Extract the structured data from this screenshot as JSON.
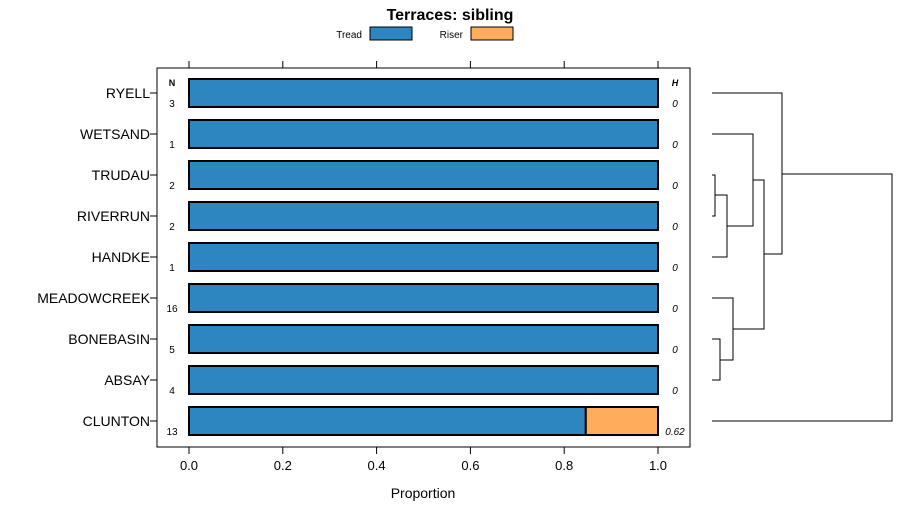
{
  "chart_data": {
    "type": "bar",
    "stacked": true,
    "orientation": "horizontal",
    "title": "Terraces: sibling",
    "xlabel": "Proportion",
    "ylabel": "",
    "xlim": [
      0,
      1
    ],
    "xticks": [
      "0.0",
      "0.2",
      "0.4",
      "0.6",
      "0.8",
      "1.0"
    ],
    "legend": {
      "placement": "top",
      "entries": [
        {
          "name": "Tread",
          "color": "#2e86c1"
        },
        {
          "name": "Riser",
          "color": "#ffad5c"
        }
      ]
    },
    "n_header": "N",
    "h_header": "H",
    "categories": [
      "RYELL",
      "WETSAND",
      "TRUDAU",
      "RIVERRUN",
      "HANDKE",
      "MEADOWCREEK",
      "BONEBASIN",
      "ABSAY",
      "CLUNTON"
    ],
    "n": [
      "3",
      "1",
      "2",
      "2",
      "1",
      "16",
      "5",
      "4",
      "13"
    ],
    "h": [
      "0",
      "0",
      "0",
      "0",
      "0",
      "0",
      "0",
      "0",
      "0.62"
    ],
    "series": [
      {
        "name": "Tread",
        "values": [
          1,
          1,
          1,
          1,
          1,
          1,
          1,
          1,
          0.846
        ]
      },
      {
        "name": "Riser",
        "values": [
          0,
          0,
          0,
          0,
          0,
          0,
          0,
          0,
          0.154
        ]
      }
    ],
    "dendrogram": true
  }
}
